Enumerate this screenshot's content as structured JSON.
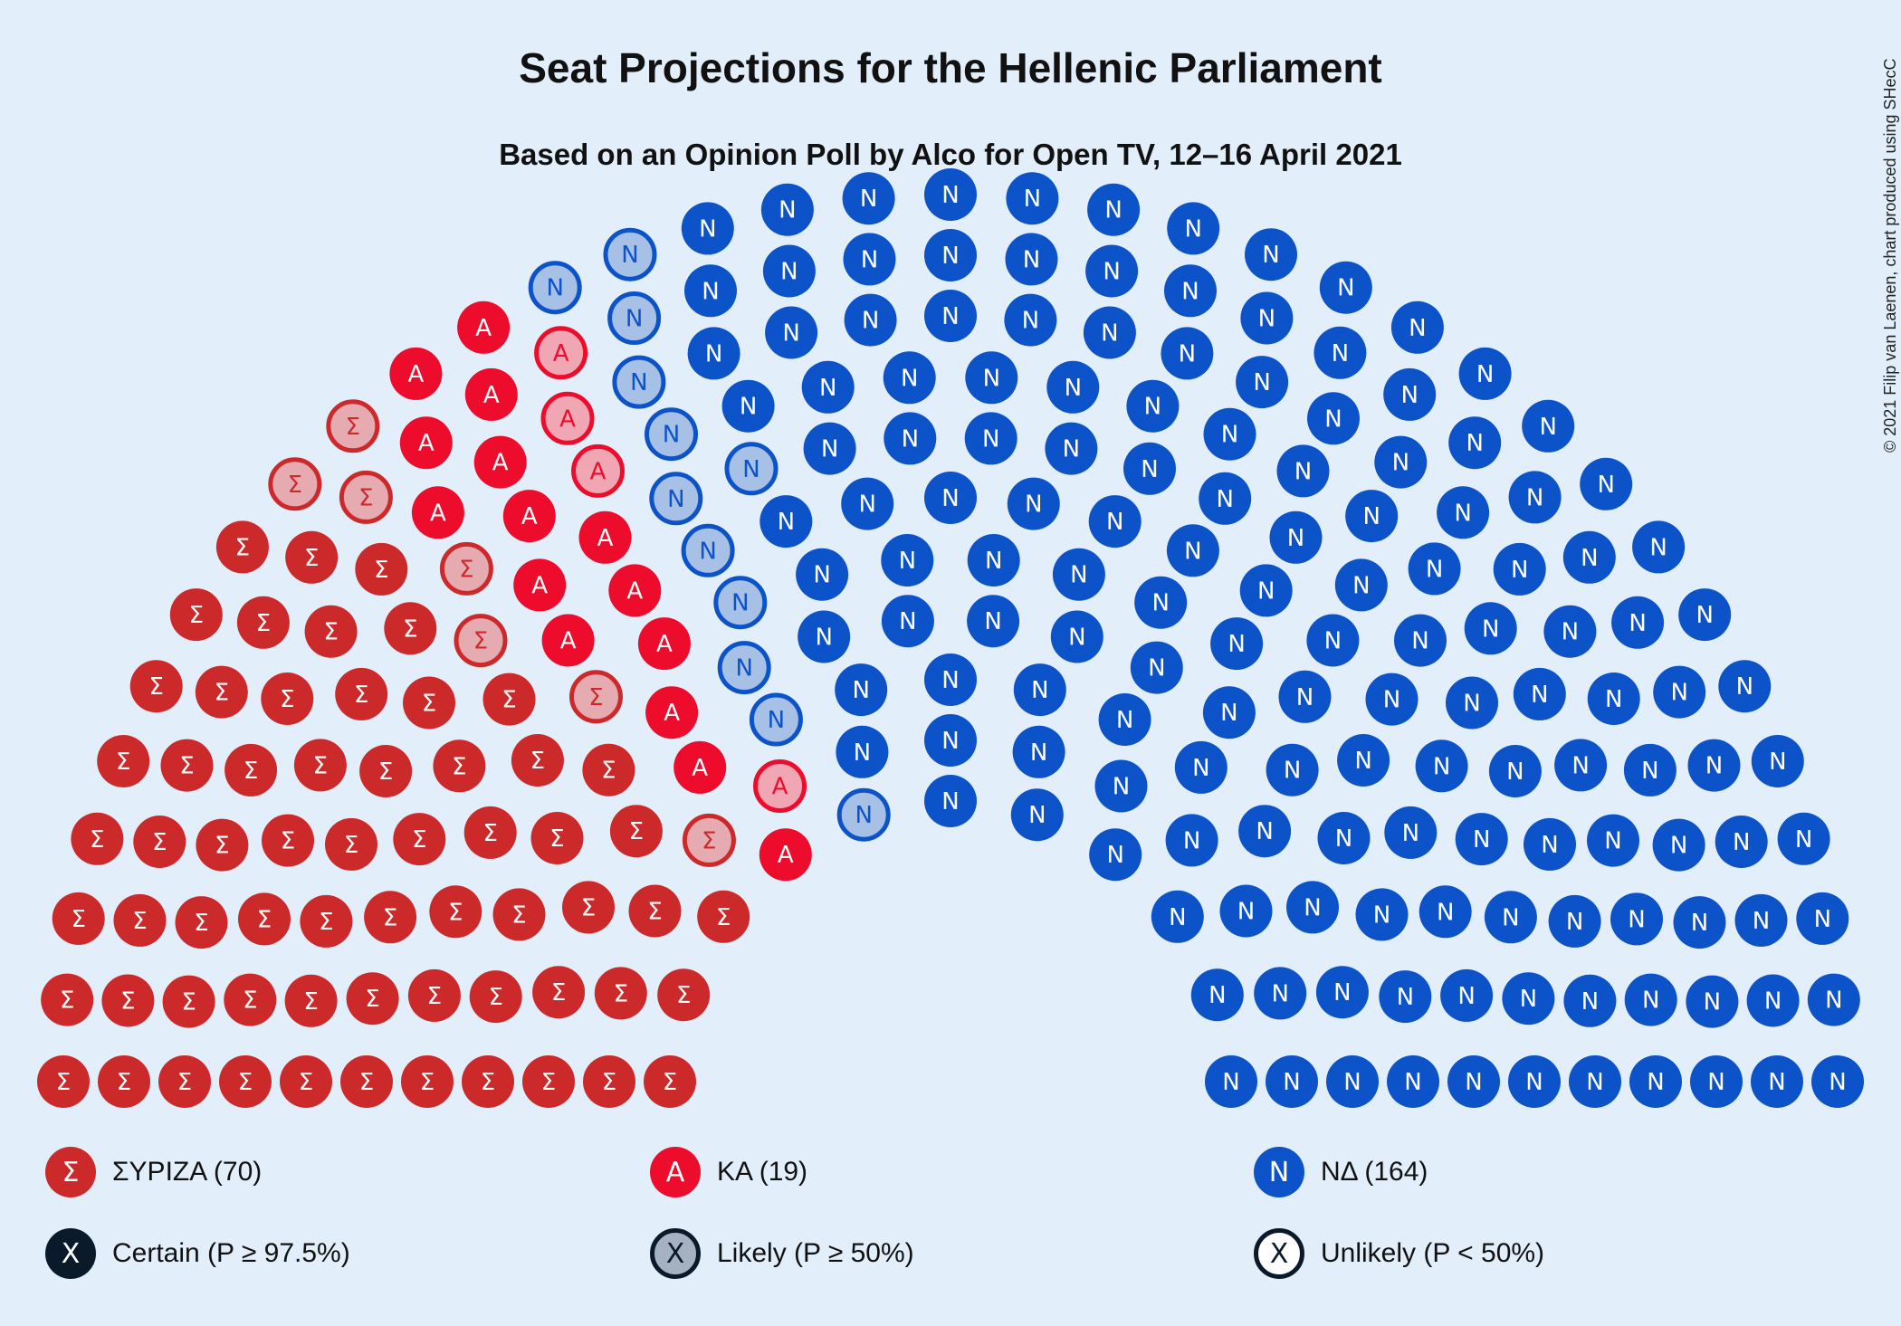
{
  "title": "Seat Projections for the Hellenic Parliament",
  "subtitle": "Based on an Opinion Poll by Alco for Open TV, 12–16 April 2021",
  "copyright": "© 2021 Filip van Laenen, chart produced using SHecC",
  "colors": {
    "background": "#e2eefa",
    "syriza": "#cc2a2a",
    "syriza_likely": "#e6aab1",
    "ka": "#ee0c2c",
    "ka_likely": "#f0a6b3",
    "nd": "#0c52c8",
    "nd_likely": "#a7c1e6",
    "certain": "#0a1a2b",
    "likely_fill": "#a6b2c2"
  },
  "chart_data": {
    "type": "hemicycle",
    "total_seats": 253,
    "parties": [
      {
        "name": "ΣΥΡΙΖΑ",
        "symbol": "Σ",
        "seats": 70,
        "certain": 63,
        "likely": 7,
        "color": "#cc2a2a"
      },
      {
        "name": "ΚΑ",
        "symbol": "Α",
        "seats": 19,
        "certain": 15,
        "likely": 4,
        "color": "#ee0c2c"
      },
      {
        "name": "ΝΔ",
        "symbol": "Ν",
        "seats": 164,
        "certain": 152,
        "likely": 12,
        "color": "#0c52c8"
      }
    ]
  },
  "legend": {
    "parties": [
      {
        "label": "ΣΥΡΙΖΑ (70)",
        "symbol": "Σ"
      },
      {
        "label": "ΚΑ (19)",
        "symbol": "Α"
      },
      {
        "label": "ΝΔ (164)",
        "symbol": "Ν"
      }
    ],
    "certainty": [
      {
        "label": "Certain (P ≥ 97.5%)",
        "symbol": "X"
      },
      {
        "label": "Likely (P ≥ 50%)",
        "symbol": "X"
      },
      {
        "label": "Unlikely (P < 50%)",
        "symbol": "X"
      }
    ]
  }
}
